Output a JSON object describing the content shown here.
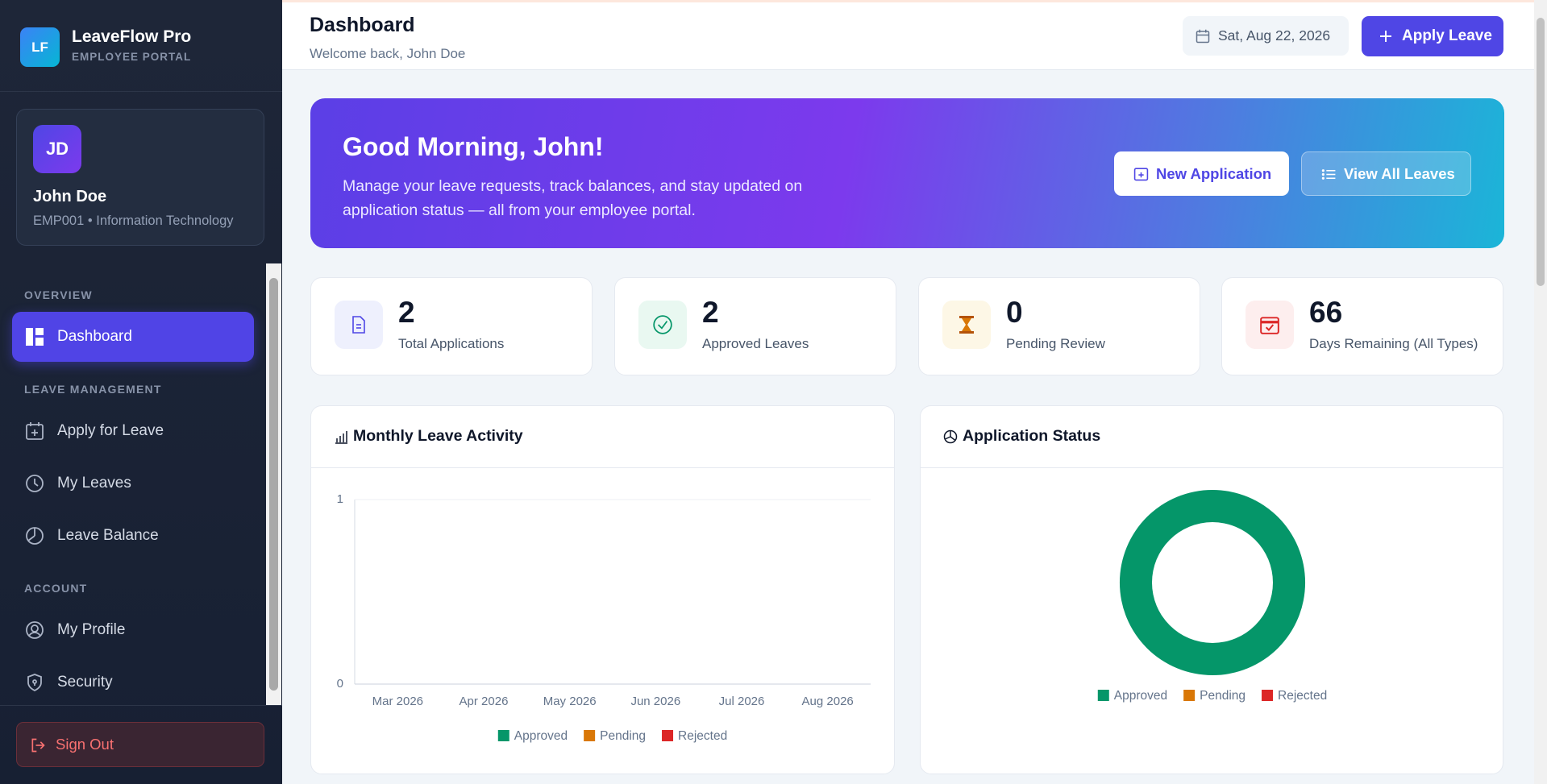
{
  "sidebar": {
    "logo": "LF",
    "brand": "LeaveFlow Pro",
    "tagline": "EMPLOYEE PORTAL",
    "user": {
      "initials": "JD",
      "name": "John Doe",
      "details": "EMP001 • Information Technology"
    },
    "sections": [
      {
        "title": "OVERVIEW",
        "items": [
          "Dashboard"
        ]
      },
      {
        "title": "LEAVE MANAGEMENT",
        "items": [
          "Apply for Leave",
          "My Leaves",
          "Leave Balance"
        ]
      },
      {
        "title": "ACCOUNT",
        "items": [
          "My Profile",
          "Security"
        ]
      }
    ],
    "sign_out": "Sign Out"
  },
  "header": {
    "title": "Dashboard",
    "subtitle": "Welcome back, John Doe",
    "date": "Sat, Aug 22, 2026",
    "apply_button": "Apply Leave"
  },
  "banner": {
    "greeting": "Good Morning, John!",
    "message": "Manage your leave requests, track balances, and stay updated on application status — all from your employee portal.",
    "buttons": [
      "New Application",
      "View All Leaves"
    ]
  },
  "stats": [
    {
      "value": 2,
      "label": "Total Applications"
    },
    {
      "value": 2,
      "label": "Approved Leaves"
    },
    {
      "value": 0,
      "label": "Pending Review"
    },
    {
      "value": 66,
      "label": "Days Remaining (All Types)"
    }
  ],
  "chart_data": [
    {
      "type": "bar",
      "title": "Monthly Leave Activity",
      "categories": [
        "Mar 2026",
        "Apr 2026",
        "May 2026",
        "Jun 2026",
        "Jul 2026",
        "Aug 2026"
      ],
      "series": [
        {
          "name": "Approved",
          "color": "#059669",
          "values": [
            0,
            0,
            0,
            0,
            0,
            0
          ]
        },
        {
          "name": "Pending",
          "color": "#d97706",
          "values": [
            0,
            0,
            0,
            0,
            0,
            0
          ]
        },
        {
          "name": "Rejected",
          "color": "#dc2626",
          "values": [
            0,
            0,
            0,
            0,
            0,
            0
          ]
        }
      ],
      "ylim": [
        0,
        1
      ],
      "yticks": [
        0,
        1
      ],
      "grid": true
    },
    {
      "type": "pie",
      "title": "Application Status",
      "categories": [
        "Approved",
        "Pending",
        "Rejected"
      ],
      "values": [
        2,
        0,
        0
      ],
      "colors": [
        "#059669",
        "#d97706",
        "#dc2626"
      ],
      "donut": true
    }
  ]
}
